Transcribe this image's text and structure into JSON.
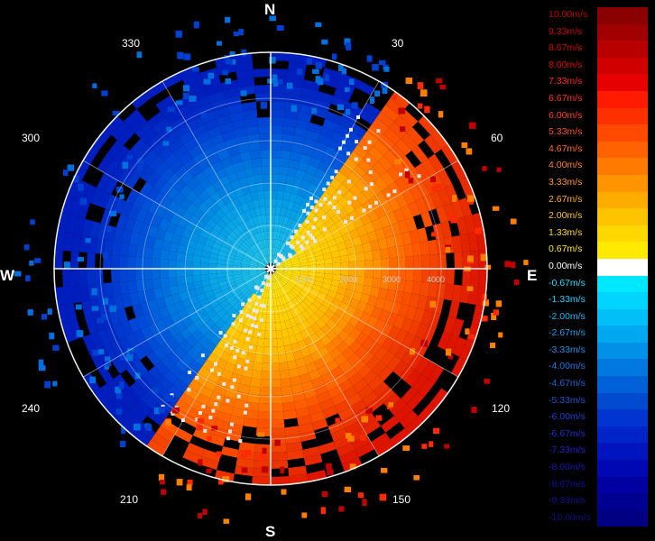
{
  "cardinals": {
    "north": "N",
    "south": "S",
    "east": "E",
    "west": "W"
  },
  "bearings": {
    "b30": "30",
    "b60": "60",
    "b120": "120",
    "b150": "150",
    "b210": "210",
    "b240": "240",
    "b300": "300",
    "b330": "330"
  },
  "ranges": [
    "1000",
    "2000",
    "3000",
    "4000"
  ],
  "colors": {
    "background": "#000000",
    "grid": "#ffffff",
    "zero": "#ffffff"
  },
  "legend": [
    {
      "label": "10.00m/s",
      "color": "#8b0000",
      "text": "#c00000"
    },
    {
      "label": "9.33m/s",
      "color": "#a00000",
      "text": "#c00000"
    },
    {
      "label": "8.67m/s",
      "color": "#b80000",
      "text": "#d00000"
    },
    {
      "label": "8.00m/s",
      "color": "#d00000",
      "text": "#e00000"
    },
    {
      "label": "7.33m/s",
      "color": "#e60000",
      "text": "#ff2020"
    },
    {
      "label": "6.67m/s",
      "color": "#ff1a00",
      "text": "#ff3020"
    },
    {
      "label": "6.00m/s",
      "color": "#ff3000",
      "text": "#ff4020"
    },
    {
      "label": "5.33m/s",
      "color": "#ff4a00",
      "text": "#ff5020"
    },
    {
      "label": "4.67m/s",
      "color": "#ff6200",
      "text": "#ff6a20"
    },
    {
      "label": "4.00m/s",
      "color": "#ff7a00",
      "text": "#ff8020"
    },
    {
      "label": "3.33m/s",
      "color": "#ff9400",
      "text": "#ff9820"
    },
    {
      "label": "2.67m/s",
      "color": "#ffac00",
      "text": "#ffac20"
    },
    {
      "label": "2.00m/s",
      "color": "#ffc400",
      "text": "#ffc420"
    },
    {
      "label": "1.33m/s",
      "color": "#ffd800",
      "text": "#ffd820"
    },
    {
      "label": "0.67m/s",
      "color": "#ffea00",
      "text": "#ffea20"
    },
    {
      "label": "0.00m/s",
      "color": "#ffffff",
      "text": "#ffffff"
    },
    {
      "label": "-0.67m/s",
      "color": "#00e8ff",
      "text": "#20e0ff"
    },
    {
      "label": "-1.33m/s",
      "color": "#00d4ff",
      "text": "#20d0ff"
    },
    {
      "label": "-2.00m/s",
      "color": "#00c0f8",
      "text": "#20b8f8"
    },
    {
      "label": "-2.67m/s",
      "color": "#00a8f0",
      "text": "#20a0f0"
    },
    {
      "label": "-3.33m/s",
      "color": "#0090e8",
      "text": "#2090e8"
    },
    {
      "label": "-4.00m/s",
      "color": "#0078e0",
      "text": "#2078e0"
    },
    {
      "label": "-4.67m/s",
      "color": "#0060d8",
      "text": "#2060d8"
    },
    {
      "label": "-5.33m/s",
      "color": "#004ad0",
      "text": "#2050d0"
    },
    {
      "label": "-6.00m/s",
      "color": "#0036d0",
      "text": "#2040d0"
    },
    {
      "label": "-6.67m/s",
      "color": "#0024c8",
      "text": "#2030c8"
    },
    {
      "label": "-7.33m/s",
      "color": "#0014c0",
      "text": "#2020c0"
    },
    {
      "label": "-8.00m/s",
      "color": "#0008b4",
      "text": "#1818b0"
    },
    {
      "label": "-8.67m/s",
      "color": "#0000a0",
      "text": "#1010a0"
    },
    {
      "label": "-9.33m/s",
      "color": "#000090",
      "text": "#101090"
    },
    {
      "label": "-10.00m/s",
      "color": "#000080",
      "text": "#101080"
    }
  ]
}
